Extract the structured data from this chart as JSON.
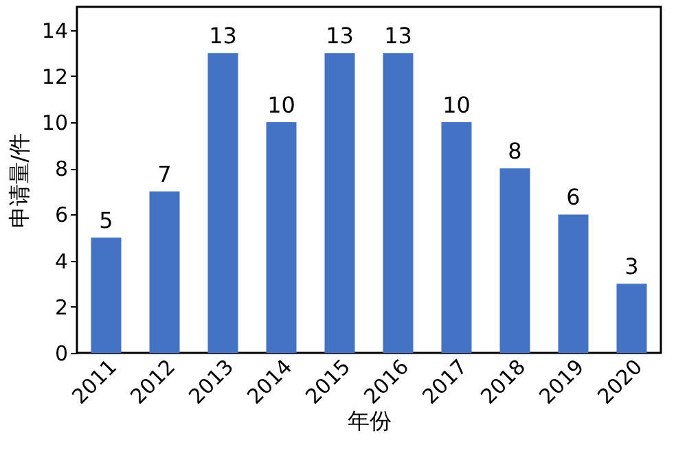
{
  "chart_data": {
    "type": "bar",
    "xlabel": "年份",
    "ylabel": "申请量/件",
    "categories": [
      "2011",
      "2012",
      "2013",
      "2014",
      "2015",
      "2016",
      "2017",
      "2018",
      "2019",
      "2020"
    ],
    "values": [
      5,
      7,
      13,
      10,
      13,
      13,
      10,
      8,
      6,
      3
    ],
    "color": "#4472c4",
    "ylim": [
      0,
      15
    ],
    "yticks": [
      0,
      2,
      4,
      6,
      8,
      10,
      12,
      14
    ],
    "grid": false,
    "data_labels": true
  }
}
